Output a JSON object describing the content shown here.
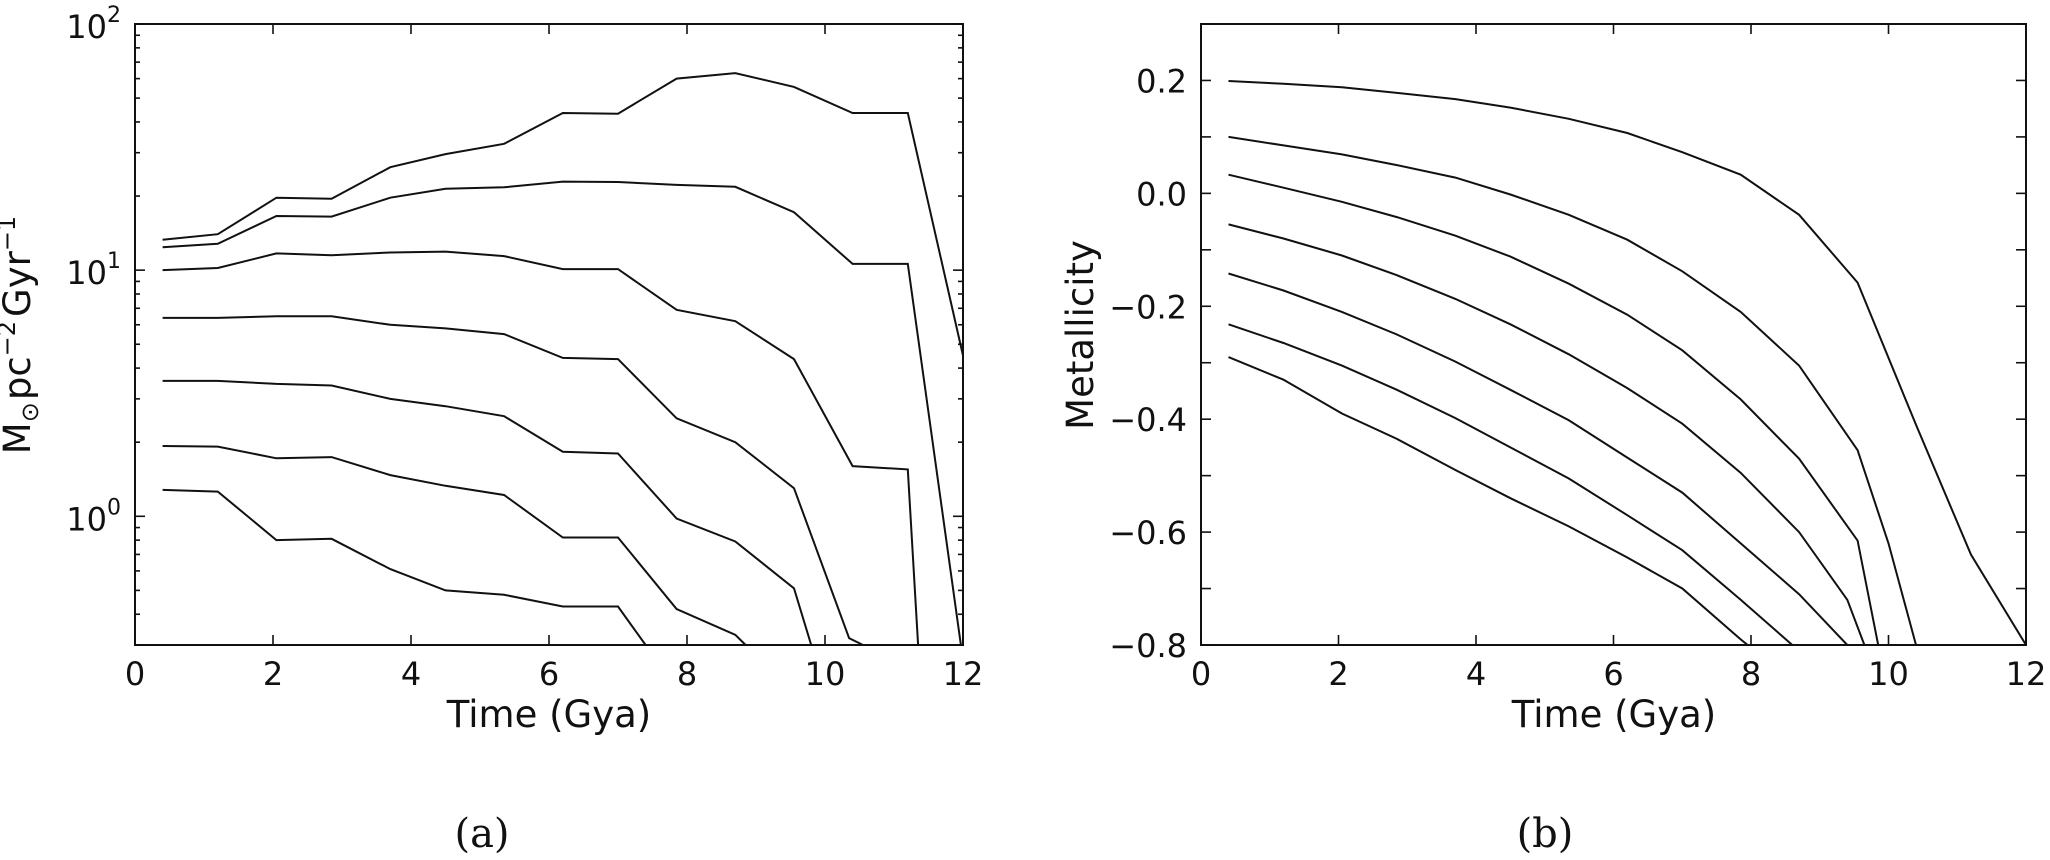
{
  "chart_data": [
    {
      "panel": "(a)",
      "type": "line",
      "xlabel": "Time (Gya)",
      "ylabel": "M",
      "ylabel_sub": "⊙",
      "ylabel_rest": "pc",
      "ylabel_exp1": "−2",
      "ylabel_rest2": "Gyr",
      "ylabel_exp2": "−1",
      "xlim": [
        0,
        12
      ],
      "ylim": [
        0.3,
        100
      ],
      "yscale": "log",
      "grid": false,
      "x_ticks": [
        0,
        2,
        4,
        6,
        8,
        10,
        12
      ],
      "x_tick_labels": [
        "0",
        "2",
        "4",
        "6",
        "8",
        "10",
        "12"
      ],
      "y_ticks": [
        1,
        10,
        100
      ],
      "y_tick_labels": [
        {
          "base": "10",
          "exp": "0"
        },
        {
          "base": "10",
          "exp": "1"
        },
        {
          "base": "10",
          "exp": "2"
        }
      ],
      "series": [
        {
          "points": [
            [
              0.4,
              13.3
            ],
            [
              1.2,
              14.0
            ],
            [
              2.05,
              19.7
            ],
            [
              2.85,
              19.5
            ],
            [
              3.7,
              26.2
            ],
            [
              4.5,
              29.6
            ],
            [
              5.35,
              32.6
            ],
            [
              6.2,
              43.5
            ],
            [
              7.0,
              43.2
            ],
            [
              7.85,
              60.0
            ],
            [
              8.7,
              63.2
            ],
            [
              9.55,
              55.5
            ],
            [
              10.4,
              43.5
            ],
            [
              11.2,
              43.5
            ],
            [
              12.0,
              4.5
            ]
          ]
        },
        {
          "points": [
            [
              0.4,
              12.4
            ],
            [
              1.2,
              12.8
            ],
            [
              2.05,
              16.6
            ],
            [
              2.85,
              16.5
            ],
            [
              3.7,
              19.7
            ],
            [
              4.5,
              21.4
            ],
            [
              5.35,
              21.7
            ],
            [
              6.2,
              22.9
            ],
            [
              7.0,
              22.8
            ],
            [
              7.85,
              22.2
            ],
            [
              8.7,
              21.8
            ],
            [
              9.55,
              17.2
            ],
            [
              10.4,
              10.6
            ],
            [
              11.2,
              10.6
            ],
            [
              11.97,
              0.3
            ]
          ]
        },
        {
          "points": [
            [
              0.4,
              10.0
            ],
            [
              1.2,
              10.2
            ],
            [
              2.05,
              11.7
            ],
            [
              2.85,
              11.5
            ],
            [
              3.7,
              11.8
            ],
            [
              4.5,
              11.9
            ],
            [
              5.35,
              11.4
            ],
            [
              6.2,
              10.1
            ],
            [
              7.0,
              10.1
            ],
            [
              7.85,
              6.9
            ],
            [
              8.7,
              6.2
            ],
            [
              9.55,
              4.35
            ],
            [
              10.4,
              1.6
            ],
            [
              11.2,
              1.55
            ],
            [
              11.35,
              0.3
            ]
          ]
        },
        {
          "points": [
            [
              0.4,
              6.4
            ],
            [
              1.2,
              6.4
            ],
            [
              2.05,
              6.5
            ],
            [
              2.85,
              6.5
            ],
            [
              3.7,
              6.0
            ],
            [
              4.5,
              5.8
            ],
            [
              5.35,
              5.5
            ],
            [
              6.2,
              4.4
            ],
            [
              7.0,
              4.35
            ],
            [
              7.85,
              2.5
            ],
            [
              8.7,
              2.0
            ],
            [
              9.55,
              1.3
            ],
            [
              10.35,
              0.32
            ],
            [
              10.55,
              0.3
            ]
          ]
        },
        {
          "points": [
            [
              0.4,
              3.55
            ],
            [
              1.2,
              3.55
            ],
            [
              2.05,
              3.45
            ],
            [
              2.85,
              3.4
            ],
            [
              3.7,
              3.0
            ],
            [
              4.5,
              2.8
            ],
            [
              5.35,
              2.55
            ],
            [
              6.2,
              1.83
            ],
            [
              7.0,
              1.8
            ],
            [
              7.85,
              0.98
            ],
            [
              8.7,
              0.79
            ],
            [
              9.55,
              0.51
            ],
            [
              9.8,
              0.3
            ]
          ]
        },
        {
          "points": [
            [
              0.4,
              1.93
            ],
            [
              1.2,
              1.92
            ],
            [
              2.05,
              1.72
            ],
            [
              2.85,
              1.74
            ],
            [
              3.7,
              1.47
            ],
            [
              4.5,
              1.33
            ],
            [
              5.35,
              1.22
            ],
            [
              6.2,
              0.82
            ],
            [
              7.0,
              0.82
            ],
            [
              7.85,
              0.42
            ],
            [
              8.7,
              0.33
            ],
            [
              8.85,
              0.3
            ]
          ]
        },
        {
          "points": [
            [
              0.4,
              1.28
            ],
            [
              1.2,
              1.26
            ],
            [
              2.05,
              0.8
            ],
            [
              2.85,
              0.81
            ],
            [
              3.7,
              0.61
            ],
            [
              4.5,
              0.5
            ],
            [
              5.35,
              0.48
            ],
            [
              6.2,
              0.43
            ],
            [
              7.0,
              0.43
            ],
            [
              7.4,
              0.3
            ]
          ]
        }
      ]
    },
    {
      "panel": "(b)",
      "type": "line",
      "xlabel": "Time (Gya)",
      "ylabel": "Metallicity",
      "xlim": [
        0,
        12
      ],
      "ylim": [
        -0.8,
        0.3
      ],
      "yscale": "linear",
      "grid": false,
      "x_ticks": [
        0,
        2,
        4,
        6,
        8,
        10,
        12
      ],
      "x_tick_labels": [
        "0",
        "2",
        "4",
        "6",
        "8",
        "10",
        "12"
      ],
      "y_ticks": [
        -0.8,
        -0.6,
        -0.4,
        -0.2,
        0.0,
        0.2
      ],
      "y_tick_labels": [
        "−0.8",
        "−0.6",
        "−0.4",
        "−0.2",
        "0.0",
        "0.2"
      ],
      "series": [
        {
          "points": [
            [
              0.4,
              0.199
            ],
            [
              1.2,
              0.194
            ],
            [
              2.05,
              0.188
            ],
            [
              2.85,
              0.178
            ],
            [
              3.7,
              0.167
            ],
            [
              4.5,
              0.152
            ],
            [
              5.35,
              0.132
            ],
            [
              6.2,
              0.107
            ],
            [
              7.0,
              0.073
            ],
            [
              7.85,
              0.033
            ],
            [
              8.7,
              -0.038
            ],
            [
              9.55,
              -0.158
            ],
            [
              10.4,
              -0.41
            ],
            [
              11.2,
              -0.64
            ],
            [
              12.0,
              -0.8
            ]
          ]
        },
        {
          "points": [
            [
              0.4,
              0.1
            ],
            [
              1.2,
              0.085
            ],
            [
              2.05,
              0.069
            ],
            [
              2.85,
              0.05
            ],
            [
              3.7,
              0.028
            ],
            [
              4.5,
              -0.002
            ],
            [
              5.35,
              -0.038
            ],
            [
              6.2,
              -0.082
            ],
            [
              7.0,
              -0.138
            ],
            [
              7.85,
              -0.21
            ],
            [
              8.7,
              -0.305
            ],
            [
              9.55,
              -0.455
            ],
            [
              10.0,
              -0.62
            ],
            [
              10.4,
              -0.8
            ]
          ]
        },
        {
          "points": [
            [
              0.4,
              0.033
            ],
            [
              1.2,
              0.01
            ],
            [
              2.05,
              -0.015
            ],
            [
              2.85,
              -0.042
            ],
            [
              3.7,
              -0.075
            ],
            [
              4.5,
              -0.112
            ],
            [
              5.35,
              -0.16
            ],
            [
              6.2,
              -0.215
            ],
            [
              7.0,
              -0.278
            ],
            [
              7.85,
              -0.365
            ],
            [
              8.7,
              -0.47
            ],
            [
              9.55,
              -0.615
            ],
            [
              9.85,
              -0.8
            ]
          ]
        },
        {
          "points": [
            [
              0.4,
              -0.055
            ],
            [
              1.2,
              -0.08
            ],
            [
              2.05,
              -0.11
            ],
            [
              2.85,
              -0.145
            ],
            [
              3.7,
              -0.187
            ],
            [
              4.5,
              -0.232
            ],
            [
              5.35,
              -0.285
            ],
            [
              6.2,
              -0.345
            ],
            [
              7.0,
              -0.408
            ],
            [
              7.85,
              -0.495
            ],
            [
              8.7,
              -0.6
            ],
            [
              9.4,
              -0.72
            ],
            [
              9.65,
              -0.8
            ]
          ]
        },
        {
          "points": [
            [
              0.4,
              -0.142
            ],
            [
              1.2,
              -0.172
            ],
            [
              2.05,
              -0.21
            ],
            [
              2.85,
              -0.25
            ],
            [
              3.7,
              -0.298
            ],
            [
              4.5,
              -0.348
            ],
            [
              5.35,
              -0.402
            ],
            [
              6.2,
              -0.468
            ],
            [
              7.0,
              -0.53
            ],
            [
              7.85,
              -0.62
            ],
            [
              8.7,
              -0.71
            ],
            [
              9.4,
              -0.8
            ]
          ]
        },
        {
          "points": [
            [
              0.4,
              -0.232
            ],
            [
              1.2,
              -0.265
            ],
            [
              2.05,
              -0.305
            ],
            [
              2.85,
              -0.348
            ],
            [
              3.7,
              -0.398
            ],
            [
              4.5,
              -0.45
            ],
            [
              5.35,
              -0.505
            ],
            [
              6.2,
              -0.57
            ],
            [
              7.0,
              -0.632
            ],
            [
              7.85,
              -0.72
            ],
            [
              8.6,
              -0.8
            ]
          ]
        },
        {
          "points": [
            [
              0.4,
              -0.29
            ],
            [
              1.2,
              -0.33
            ],
            [
              2.05,
              -0.39
            ],
            [
              2.85,
              -0.435
            ],
            [
              3.7,
              -0.49
            ],
            [
              4.5,
              -0.54
            ],
            [
              5.35,
              -0.59
            ],
            [
              6.2,
              -0.645
            ],
            [
              7.0,
              -0.7
            ],
            [
              7.85,
              -0.79
            ],
            [
              7.95,
              -0.8
            ]
          ]
        }
      ]
    }
  ]
}
